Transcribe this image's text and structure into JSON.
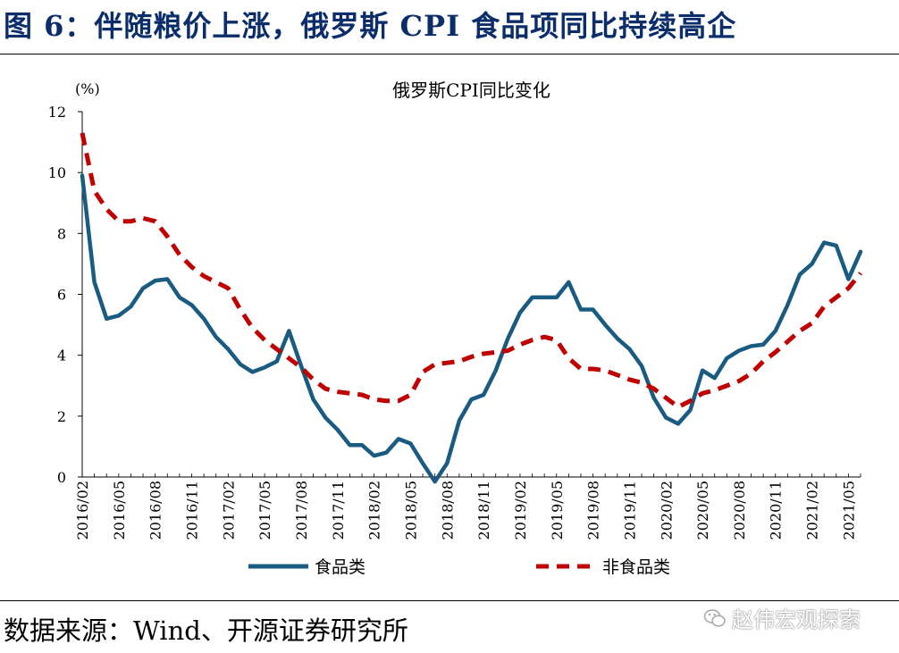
{
  "figure": {
    "title": "图 6：伴随粮价上涨，俄罗斯 CPI 食品项同比持续高企",
    "source": "数据来源：Wind、开源证券研究所",
    "watermark": "赵伟宏观探索"
  },
  "chart_data": {
    "type": "line",
    "title": "俄罗斯CPI同比变化",
    "ylabel": "(%)",
    "xlabel": "",
    "ylim": [
      0,
      12
    ],
    "yticks": [
      0,
      2,
      4,
      6,
      8,
      10,
      12
    ],
    "grid": false,
    "legend_position": "bottom",
    "x": [
      "2016/02",
      "2016/03",
      "2016/04",
      "2016/05",
      "2016/06",
      "2016/07",
      "2016/08",
      "2016/09",
      "2016/10",
      "2016/11",
      "2016/12",
      "2017/01",
      "2017/02",
      "2017/03",
      "2017/04",
      "2017/05",
      "2017/06",
      "2017/07",
      "2017/08",
      "2017/09",
      "2017/10",
      "2017/11",
      "2017/12",
      "2018/01",
      "2018/02",
      "2018/03",
      "2018/04",
      "2018/05",
      "2018/06",
      "2018/07",
      "2018/08",
      "2018/09",
      "2018/10",
      "2018/11",
      "2018/12",
      "2019/01",
      "2019/02",
      "2019/03",
      "2019/04",
      "2019/05",
      "2019/06",
      "2019/07",
      "2019/08",
      "2019/09",
      "2019/10",
      "2019/11",
      "2019/12",
      "2020/01",
      "2020/02",
      "2020/03",
      "2020/04",
      "2020/05",
      "2020/06",
      "2020/07",
      "2020/08",
      "2020/09",
      "2020/10",
      "2020/11",
      "2020/12",
      "2021/01",
      "2021/02",
      "2021/03",
      "2021/04",
      "2021/05",
      "2021/06"
    ],
    "xtick_labels": [
      "2016/02",
      "2016/05",
      "2016/08",
      "2016/11",
      "2017/02",
      "2017/05",
      "2017/08",
      "2017/11",
      "2018/02",
      "2018/05",
      "2018/08",
      "2018/11",
      "2019/02",
      "2019/05",
      "2019/08",
      "2019/11",
      "2020/02",
      "2020/05",
      "2020/08",
      "2020/11",
      "2021/02",
      "2021/05"
    ],
    "series": [
      {
        "name": "食品类",
        "color": "#1a5b82",
        "style": "solid",
        "values": [
          9.9,
          6.4,
          5.2,
          5.3,
          5.6,
          6.2,
          6.45,
          6.5,
          5.9,
          5.65,
          5.2,
          4.6,
          4.2,
          3.7,
          3.45,
          3.6,
          3.8,
          4.8,
          3.65,
          2.55,
          1.95,
          1.55,
          1.05,
          1.05,
          0.7,
          0.8,
          1.25,
          1.1,
          0.45,
          -0.15,
          0.45,
          1.85,
          2.55,
          2.7,
          3.5,
          4.55,
          5.4,
          5.9,
          5.9,
          5.9,
          6.4,
          5.5,
          5.5,
          5.0,
          4.55,
          4.2,
          3.65,
          2.6,
          1.95,
          1.75,
          2.2,
          3.5,
          3.25,
          3.9,
          4.15,
          4.3,
          4.35,
          4.8,
          5.65,
          6.65,
          7.0,
          7.7,
          7.6,
          6.5,
          7.4
        ]
      },
      {
        "name": "非食品类",
        "color": "#c00000",
        "style": "dashed",
        "values": [
          11.3,
          9.4,
          8.8,
          8.4,
          8.4,
          8.5,
          8.4,
          7.9,
          7.3,
          6.9,
          6.6,
          6.4,
          6.2,
          5.5,
          4.9,
          4.5,
          4.2,
          3.9,
          3.6,
          3.2,
          2.9,
          2.8,
          2.75,
          2.7,
          2.55,
          2.5,
          2.5,
          2.7,
          3.45,
          3.7,
          3.75,
          3.8,
          3.95,
          4.05,
          4.1,
          4.15,
          4.35,
          4.5,
          4.6,
          4.5,
          3.9,
          3.55,
          3.55,
          3.5,
          3.35,
          3.2,
          3.1,
          2.9,
          2.6,
          2.3,
          2.5,
          2.75,
          2.85,
          3.0,
          3.15,
          3.4,
          3.8,
          4.1,
          4.45,
          4.8,
          5.05,
          5.6,
          5.9,
          6.2,
          6.7
        ]
      }
    ]
  }
}
